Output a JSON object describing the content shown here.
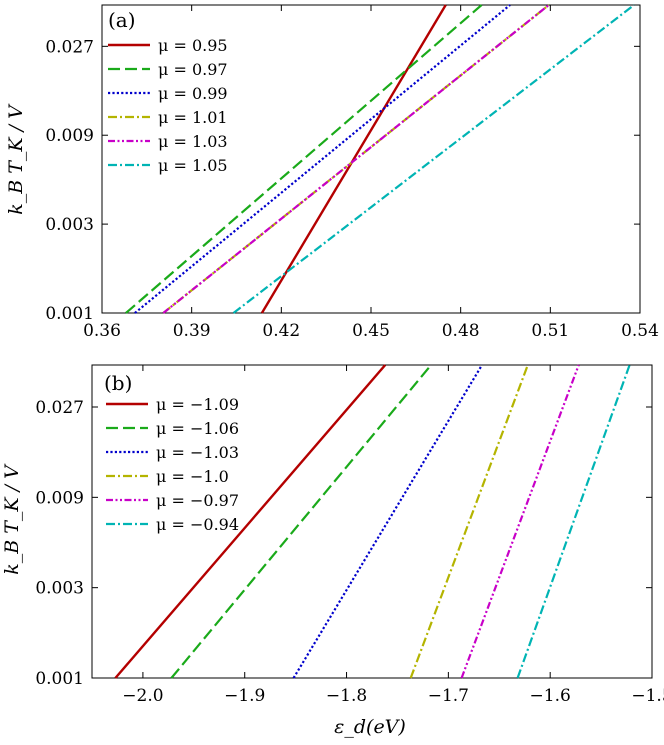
{
  "chart_data": [
    {
      "type": "line",
      "panel_label": "(a)",
      "xlabel": "",
      "ylabel": "k_B T_K / V",
      "yscale": "log",
      "xlim": [
        0.36,
        0.54
      ],
      "ylim": [
        0.001,
        0.045
      ],
      "x_ticks": [
        0.36,
        0.39,
        0.42,
        0.45,
        0.48,
        0.51,
        0.54
      ],
      "x_tick_labels": [
        "0.36",
        "0.39",
        "0.42",
        "0.45",
        "0.48",
        "0.51",
        "0.54"
      ],
      "y_ticks": [
        0.001,
        0.003,
        0.009,
        0.027
      ],
      "y_tick_labels": [
        "0.001",
        "0.003",
        "0.009",
        "0.027"
      ],
      "legend_position": "top-left",
      "series": [
        {
          "name": "μ = 0.95",
          "color": "#b40000",
          "dash": "solid",
          "x": [
            0.4135,
            0.475
          ],
          "y": [
            0.001,
            0.045
          ]
        },
        {
          "name": "μ = 0.97",
          "color": "#1aaa1a",
          "dash": "longdash",
          "x": [
            0.368,
            0.487
          ],
          "y": [
            0.001,
            0.045
          ]
        },
        {
          "name": "μ = 0.99",
          "color": "#0000cc",
          "dash": "dotted",
          "x": [
            0.371,
            0.4965
          ],
          "y": [
            0.001,
            0.045
          ]
        },
        {
          "name": "μ = 1.01",
          "color": "#b4b400",
          "dash": "dashdot",
          "x": [
            0.3805,
            0.5095
          ],
          "y": [
            0.001,
            0.045
          ]
        },
        {
          "name": "μ = 1.03",
          "color": "#c800c8",
          "dash": "dashdotdot",
          "x": [
            0.3805,
            0.5095
          ],
          "y": [
            0.001,
            0.045
          ]
        },
        {
          "name": "μ = 1.05",
          "color": "#00b4b4",
          "dash": "dashdot",
          "x": [
            0.404,
            0.538
          ],
          "y": [
            0.001,
            0.045
          ]
        }
      ]
    },
    {
      "type": "line",
      "panel_label": "(b)",
      "xlabel": "ε_d(eV)",
      "ylabel": "k_B T_K / V",
      "yscale": "log",
      "xlim": [
        -2.05,
        -1.5
      ],
      "ylim": [
        0.001,
        0.045
      ],
      "x_ticks": [
        -2.0,
        -1.9,
        -1.8,
        -1.7,
        -1.6,
        -1.5
      ],
      "x_tick_labels": [
        "−2.0",
        "−1.9",
        "−1.8",
        "−1.7",
        "−1.6",
        "−1.5"
      ],
      "y_ticks": [
        0.001,
        0.003,
        0.009,
        0.027
      ],
      "y_tick_labels": [
        "0.001",
        "0.003",
        "0.009",
        "0.027"
      ],
      "legend_position": "top-left",
      "series": [
        {
          "name": "μ = −1.09",
          "color": "#b40000",
          "dash": "solid",
          "x": [
            -2.027,
            -1.762
          ],
          "y": [
            0.001,
            0.045
          ]
        },
        {
          "name": "μ = −1.06",
          "color": "#1aaa1a",
          "dash": "longdash",
          "x": [
            -1.972,
            -1.717
          ],
          "y": [
            0.001,
            0.045
          ]
        },
        {
          "name": "μ = −1.03",
          "color": "#0000cc",
          "dash": "dotted",
          "x": [
            -1.852,
            -1.667
          ],
          "y": [
            0.001,
            0.045
          ]
        },
        {
          "name": "μ = −1.0",
          "color": "#b4b400",
          "dash": "dashdot",
          "x": [
            -1.737,
            -1.622
          ],
          "y": [
            0.001,
            0.045
          ]
        },
        {
          "name": "μ = −0.97",
          "color": "#c800c8",
          "dash": "dashdotdot",
          "x": [
            -1.687,
            -1.572
          ],
          "y": [
            0.001,
            0.045
          ]
        },
        {
          "name": "μ = −0.94",
          "color": "#00b4b4",
          "dash": "dashdot",
          "x": [
            -1.632,
            -1.522
          ],
          "y": [
            0.001,
            0.045
          ]
        }
      ]
    }
  ]
}
